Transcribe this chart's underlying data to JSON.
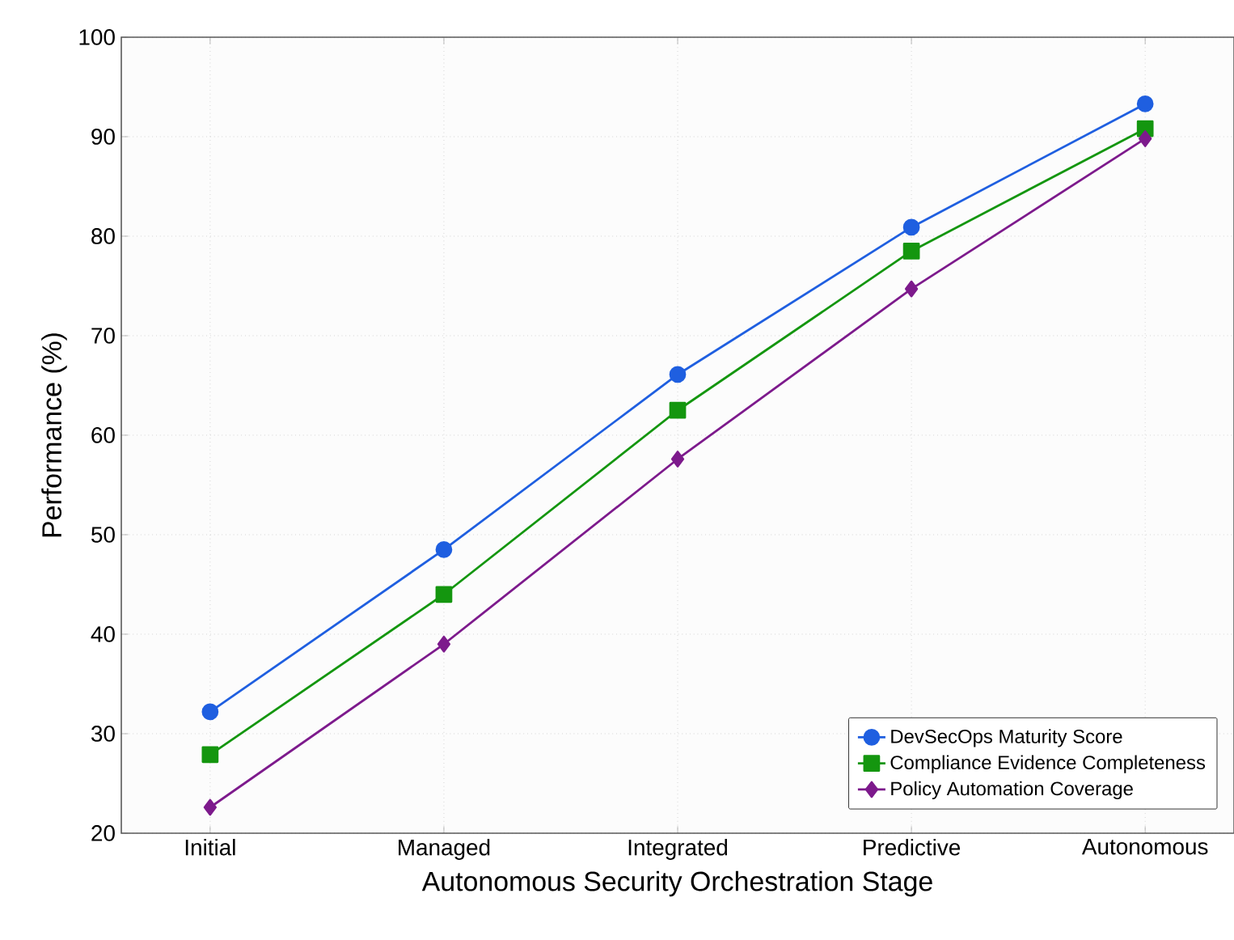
{
  "chart_data": {
    "type": "line",
    "xlabel": "Autonomous Security Orchestration Stage",
    "ylabel": "Performance (%)",
    "categories": [
      "Initial",
      "Managed",
      "Integrated",
      "Predictive",
      "Autonomous"
    ],
    "series": [
      {
        "name": "DevSecOps Maturity Score",
        "color": "#1f5fe0",
        "marker": "circle",
        "values": [
          32.2,
          48.5,
          66.1,
          80.9,
          93.3
        ]
      },
      {
        "name": "Compliance Evidence Completeness",
        "color": "#14960f",
        "marker": "square",
        "values": [
          27.9,
          44.0,
          62.5,
          78.5,
          90.8
        ]
      },
      {
        "name": "Policy Automation Coverage",
        "color": "#7d1a8c",
        "marker": "diamond",
        "values": [
          22.6,
          39.0,
          57.6,
          74.7,
          89.8
        ]
      }
    ],
    "ylim": [
      20,
      100
    ],
    "yticks": [
      20,
      30,
      40,
      50,
      60,
      70,
      80,
      90,
      100
    ],
    "grid": true,
    "legend": "bottom right",
    "line_style": "solid"
  }
}
